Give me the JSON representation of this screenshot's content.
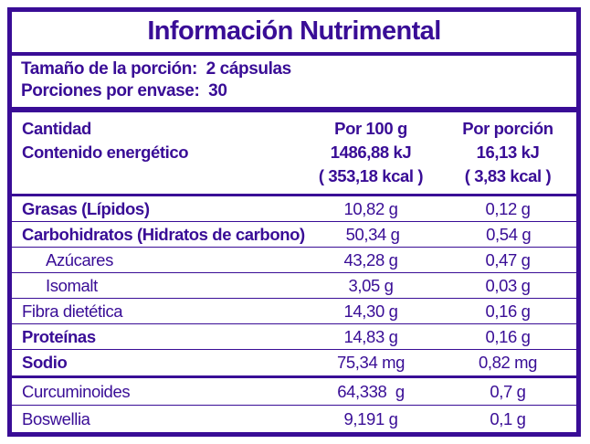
{
  "title": "Información Nutrimental",
  "serving_info": {
    "serving_size": "Tamaño de la porción:  2 cápsulas",
    "servings_per_container": "Porciones por envase:  30"
  },
  "table_header": {
    "amount_label": "Cantidad",
    "energy_label": "Contenido energético",
    "per_100g": {
      "title": "Por 100 g",
      "energy_kj": "1486,88 kJ",
      "energy_kcal": "( 353,18 kcal )"
    },
    "per_serving": {
      "title": "Por porción",
      "energy_kj": "16,13 kJ",
      "energy_kcal": "( 3,83 kcal )"
    }
  },
  "nutrients": [
    {
      "name": "Grasas (Lípidos)",
      "per_100g": "10,82 g",
      "per_serving": "0,12 g"
    },
    {
      "name": "Carbohidratos (Hidratos de carbono)",
      "per_100g": "50,34 g",
      "per_serving": "0,54 g"
    },
    {
      "name": "Azúcares",
      "per_100g": "43,28 g",
      "per_serving": "0,47 g"
    },
    {
      "name": "Isomalt",
      "per_100g": "3,05 g",
      "per_serving": "0,03 g"
    },
    {
      "name": "Fibra dietética",
      "per_100g": "14,30 g",
      "per_serving": "0,16 g"
    },
    {
      "name": "Proteínas",
      "per_100g": "14,83 g",
      "per_serving": "0,16 g"
    },
    {
      "name": "Sodio",
      "per_100g": "75,34 mg",
      "per_serving": "0,82 mg"
    }
  ],
  "actives": [
    {
      "name": "Curcuminoides",
      "per_100g": "64,338  g",
      "per_serving": "0,7 g"
    },
    {
      "name": "Boswellia",
      "per_100g": "9,191 g",
      "per_serving": "0,1 g"
    }
  ],
  "colors": {
    "ink": "#390D96",
    "background": "#FFFFFF"
  }
}
